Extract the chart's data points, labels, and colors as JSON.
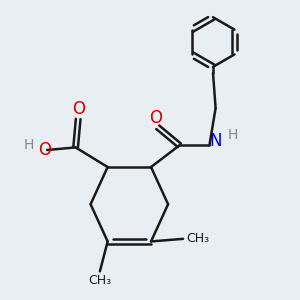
{
  "bg_color": "#e8eef2",
  "bond_color": "#1a1a1a",
  "bond_width": 1.8,
  "o_color": "#cc0000",
  "n_color": "#0000cc",
  "h_color": "#888888",
  "figsize": [
    3.0,
    3.0
  ],
  "dpi": 100,
  "xlim": [
    -1.2,
    3.8
  ],
  "ylim": [
    -1.5,
    4.2
  ]
}
